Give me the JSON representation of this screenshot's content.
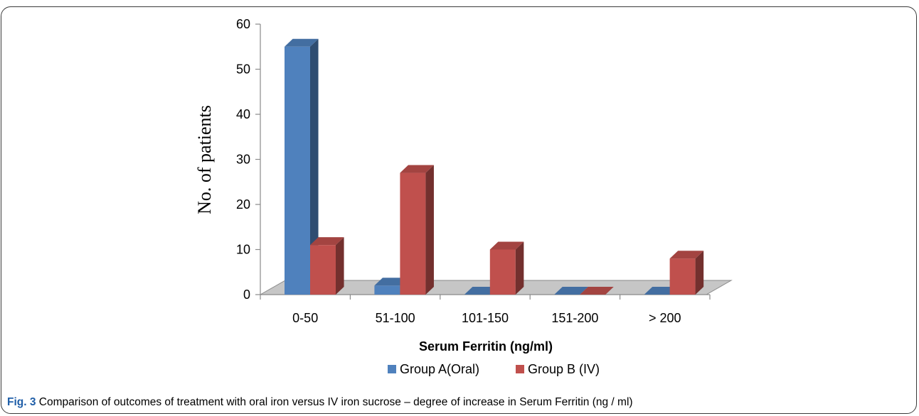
{
  "figure": {
    "label": "Fig. 3",
    "caption": "Comparison of outcomes of treatment with oral iron versus IV iron sucrose – degree of increase in Serum Ferritin (ng / ml)"
  },
  "chart_data": {
    "type": "bar",
    "style": "3d-clustered-column",
    "categories": [
      "0-50",
      "51-100",
      "101-150",
      "151-200",
      "> 200"
    ],
    "series": [
      {
        "name": "Group A(Oral)",
        "values": [
          55,
          2,
          0,
          0,
          0
        ],
        "color": "#4F81BD"
      },
      {
        "name": "Group B (IV)",
        "values": [
          11,
          27,
          10,
          0,
          8
        ],
        "color": "#C0504D"
      }
    ],
    "xlabel": "Serum Ferritin (ng/ml)",
    "ylabel": "No. of patients",
    "ylim": [
      0,
      60
    ],
    "yticks": [
      0,
      10,
      20,
      30,
      40,
      50,
      60
    ],
    "grid": false,
    "legend": "bottom"
  }
}
